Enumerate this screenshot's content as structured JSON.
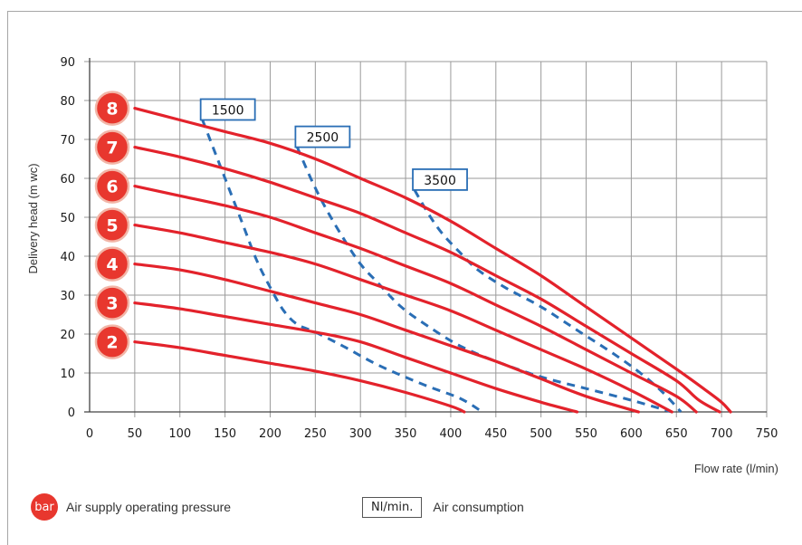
{
  "chart_data": {
    "type": "line",
    "xlabel": "Flow rate (l/min)",
    "ylabel": "Delivery head (m wc)",
    "xlim": [
      0,
      750
    ],
    "ylim": [
      0,
      90
    ],
    "x_ticks": [
      0,
      50,
      100,
      150,
      200,
      250,
      300,
      350,
      400,
      450,
      500,
      550,
      600,
      650,
      700,
      750
    ],
    "y_ticks": [
      0,
      10,
      20,
      30,
      40,
      50,
      60,
      70,
      80,
      90
    ],
    "grid": true,
    "pressure_series": [
      {
        "name": "8",
        "points": [
          [
            50,
            78
          ],
          [
            100,
            75
          ],
          [
            150,
            72
          ],
          [
            200,
            69
          ],
          [
            250,
            65
          ],
          [
            300,
            60
          ],
          [
            350,
            55
          ],
          [
            400,
            49
          ],
          [
            450,
            42
          ],
          [
            500,
            35
          ],
          [
            550,
            27
          ],
          [
            600,
            19
          ],
          [
            650,
            11
          ],
          [
            680,
            6
          ],
          [
            700,
            2.5
          ],
          [
            710,
            0
          ]
        ]
      },
      {
        "name": "7",
        "points": [
          [
            50,
            68
          ],
          [
            100,
            65.5
          ],
          [
            150,
            62.5
          ],
          [
            200,
            59
          ],
          [
            250,
            55
          ],
          [
            300,
            51
          ],
          [
            350,
            46
          ],
          [
            400,
            41
          ],
          [
            450,
            35
          ],
          [
            500,
            29
          ],
          [
            550,
            22
          ],
          [
            600,
            15
          ],
          [
            650,
            8
          ],
          [
            675,
            3
          ],
          [
            698,
            0
          ]
        ]
      },
      {
        "name": "6",
        "points": [
          [
            50,
            58
          ],
          [
            100,
            55.5
          ],
          [
            150,
            53
          ],
          [
            200,
            50
          ],
          [
            250,
            46
          ],
          [
            300,
            42
          ],
          [
            350,
            37.5
          ],
          [
            400,
            33
          ],
          [
            450,
            27.5
          ],
          [
            500,
            22
          ],
          [
            550,
            16
          ],
          [
            600,
            10
          ],
          [
            650,
            4
          ],
          [
            672,
            0
          ]
        ]
      },
      {
        "name": "5",
        "points": [
          [
            50,
            48
          ],
          [
            100,
            46
          ],
          [
            150,
            43.5
          ],
          [
            200,
            41
          ],
          [
            250,
            38
          ],
          [
            300,
            34
          ],
          [
            350,
            30
          ],
          [
            400,
            26
          ],
          [
            450,
            21
          ],
          [
            500,
            16
          ],
          [
            550,
            11
          ],
          [
            600,
            5.5
          ],
          [
            645,
            0
          ]
        ]
      },
      {
        "name": "4",
        "points": [
          [
            50,
            38
          ],
          [
            100,
            36.5
          ],
          [
            150,
            34
          ],
          [
            200,
            31
          ],
          [
            250,
            28
          ],
          [
            300,
            25
          ],
          [
            350,
            21
          ],
          [
            400,
            17
          ],
          [
            450,
            13
          ],
          [
            500,
            8.5
          ],
          [
            550,
            4
          ],
          [
            608,
            0
          ]
        ]
      },
      {
        "name": "3",
        "points": [
          [
            50,
            28
          ],
          [
            100,
            26.5
          ],
          [
            150,
            24.5
          ],
          [
            200,
            22.5
          ],
          [
            250,
            20.5
          ],
          [
            300,
            18
          ],
          [
            350,
            14
          ],
          [
            400,
            10
          ],
          [
            450,
            6
          ],
          [
            500,
            2.5
          ],
          [
            540,
            0
          ]
        ]
      },
      {
        "name": "2",
        "points": [
          [
            50,
            18
          ],
          [
            100,
            16.5
          ],
          [
            150,
            14.5
          ],
          [
            200,
            12.5
          ],
          [
            250,
            10.5
          ],
          [
            300,
            8
          ],
          [
            350,
            5
          ],
          [
            400,
            1.5
          ],
          [
            415,
            0
          ]
        ]
      }
    ],
    "air_consumption_series": [
      {
        "name": "1500",
        "points": [
          [
            125,
            75
          ],
          [
            140,
            66
          ],
          [
            155,
            57
          ],
          [
            170,
            48
          ],
          [
            185,
            39
          ],
          [
            200,
            32
          ],
          [
            215,
            26
          ],
          [
            230,
            22.5
          ],
          [
            250,
            20.5
          ],
          [
            280,
            17
          ],
          [
            320,
            12
          ],
          [
            370,
            7
          ],
          [
            410,
            3.5
          ],
          [
            435,
            0
          ]
        ]
      },
      {
        "name": "2500",
        "points": [
          [
            230,
            68
          ],
          [
            245,
            60
          ],
          [
            260,
            53
          ],
          [
            280,
            45
          ],
          [
            300,
            38
          ],
          [
            320,
            33
          ],
          [
            345,
            27
          ],
          [
            375,
            22
          ],
          [
            410,
            17
          ],
          [
            450,
            13
          ],
          [
            500,
            9
          ],
          [
            550,
            6
          ],
          [
            600,
            3
          ],
          [
            645,
            0
          ]
        ]
      },
      {
        "name": "3500",
        "points": [
          [
            360,
            57
          ],
          [
            375,
            51
          ],
          [
            390,
            46
          ],
          [
            410,
            41
          ],
          [
            430,
            36.5
          ],
          [
            460,
            32
          ],
          [
            500,
            27
          ],
          [
            540,
            21
          ],
          [
            580,
            15
          ],
          [
            610,
            10
          ],
          [
            635,
            5
          ],
          [
            655,
            0
          ]
        ]
      }
    ]
  },
  "bubble_labels": [
    "8",
    "7",
    "6",
    "5",
    "4",
    "3",
    "2"
  ],
  "iso_labels": [
    "1500",
    "2500",
    "3500"
  ],
  "legend": {
    "bar_badge": "bar",
    "bar_text": "Air supply operating pressure",
    "box_text": "Nl/min.",
    "box_desc": "Air consumption"
  },
  "colors": {
    "pressure_line": "#e3222b",
    "air_line": "#2a6eb5",
    "bubble_fill": "#e8372e",
    "bubble_stroke": "#f2b6a8",
    "grid": "#9a9a9a"
  }
}
